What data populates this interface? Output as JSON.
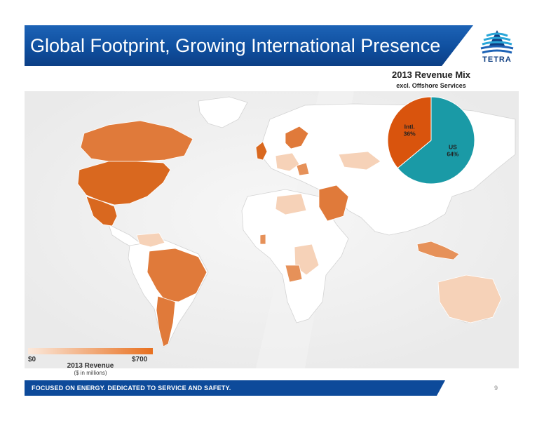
{
  "header": {
    "title": "Global Footprint, Growing International Presence"
  },
  "logo": {
    "text": "TETRA"
  },
  "legend": {
    "min_label": "$0",
    "max_label": "$700",
    "title": "2013 Revenue",
    "subtitle": "($ in millions)",
    "color_low": "#fbe9dc",
    "color_high": "#e8701f"
  },
  "chart_data": {
    "type": "pie",
    "title": "2013 Revenue Mix",
    "subtitle": "excl. Offshore Services",
    "slices": [
      {
        "name": "US",
        "value": 64,
        "label": "US\n64%",
        "color": "#1a9aa6"
      },
      {
        "name": "Intl.",
        "value": 36,
        "label": "Intl.\n36%",
        "color": "#d9540d"
      }
    ]
  },
  "footer": {
    "tagline": "FOCUSED ON ENERGY. DEDICATED TO SERVICE AND SAFETY.",
    "page_number": "9"
  },
  "colors": {
    "header_blue": "#1d63b6",
    "footer_blue": "#0d4a9a",
    "map_land": "#ffffff",
    "map_border": "#d3d3d3",
    "map_background": "#efefef",
    "revenue_high": "#d9681f",
    "revenue_mid": "#e69159",
    "revenue_low": "#f6d2b8"
  }
}
